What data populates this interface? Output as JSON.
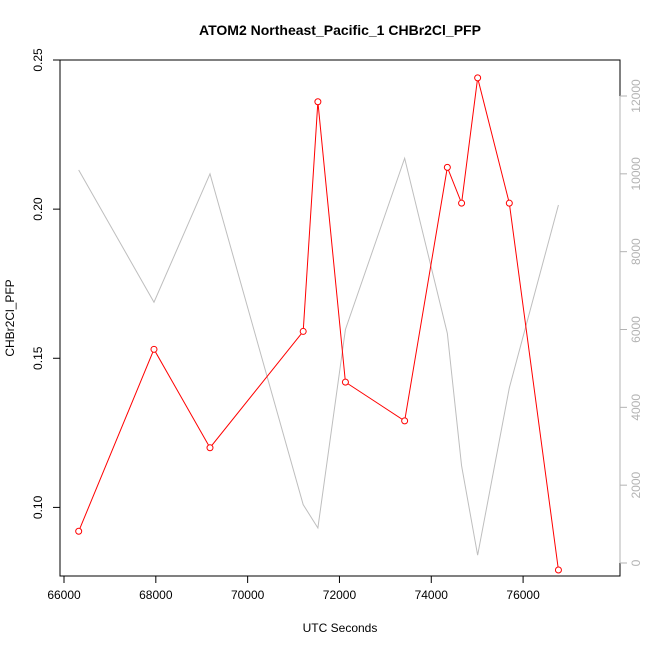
{
  "chart_data": {
    "type": "line",
    "title": "ATOM2 Northeast_Pacific_1 CHBr2Cl_PFP",
    "xlabel": "UTC Seconds",
    "ylabel": "CHBr2Cl_PFP",
    "xlim": [
      66000,
      77000
    ],
    "ylim": [
      0.077,
      0.25
    ],
    "y2lim": [
      0,
      12000
    ],
    "x_ticks": [
      66000,
      68000,
      70000,
      72000,
      74000,
      76000
    ],
    "x_tick_labels": [
      "66000",
      "68000",
      "70000",
      "72000",
      "74000",
      "76000"
    ],
    "y_ticks": [
      0.1,
      0.15,
      0.2,
      0.25
    ],
    "y_tick_labels": [
      "0.10",
      "0.15",
      "0.20",
      "0.25"
    ],
    "y2_ticks": [
      0,
      2000,
      4000,
      6000,
      8000,
      10000,
      12000
    ],
    "y2_tick_labels": [
      "0",
      "2000",
      "4000",
      "6000",
      "8000",
      "10000",
      "12000"
    ],
    "grid": false,
    "series": [
      {
        "axis": "left",
        "color": "#ff0000",
        "markers": "open-circle",
        "x": [
          66320,
          67960,
          69180,
          71210,
          71530,
          72130,
          73420,
          74350,
          74660,
          75010,
          75700,
          76770
        ],
        "y": [
          0.092,
          0.153,
          0.12,
          0.159,
          0.236,
          0.142,
          0.129,
          0.214,
          0.202,
          0.244,
          0.202,
          0.079
        ]
      },
      {
        "axis": "right",
        "color": "#bebebe",
        "markers": "none",
        "x": [
          66320,
          67960,
          69180,
          71210,
          71530,
          72130,
          73420,
          74350,
          74660,
          75010,
          75700,
          76770
        ],
        "y": [
          10100,
          6700,
          10000,
          1500,
          900,
          6000,
          10400,
          5900,
          2500,
          200,
          4500,
          9200
        ]
      }
    ]
  }
}
